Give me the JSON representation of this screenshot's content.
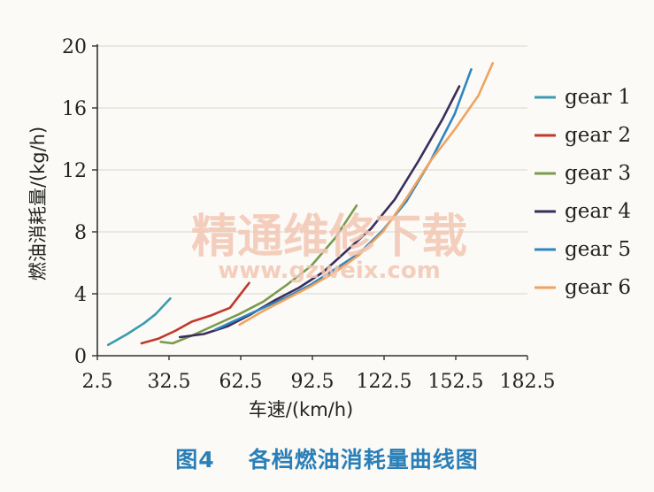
{
  "chart_data": {
    "type": "line",
    "title": "",
    "xlabel": "车速/(km/h)",
    "ylabel": "燃油消耗量/(kg/h)",
    "xlim": [
      2.5,
      182.5
    ],
    "ylim": [
      0,
      20
    ],
    "xticks": [
      "2.5",
      "32.5",
      "62.5",
      "92.5",
      "122.5",
      "152.5",
      "182.5"
    ],
    "yticks": [
      "0",
      "4",
      "8",
      "12",
      "16",
      "20"
    ],
    "legend_position": "right",
    "grid": true,
    "series": [
      {
        "name": "gear 1",
        "color": "#3b9bb0",
        "x": [
          7,
          15,
          22,
          27,
          33
        ],
        "y": [
          0.7,
          1.4,
          2.1,
          2.7,
          3.7
        ]
      },
      {
        "name": "gear 2",
        "color": "#c0392b",
        "x": [
          21,
          28,
          35,
          42,
          50,
          58,
          66
        ],
        "y": [
          0.8,
          1.1,
          1.6,
          2.2,
          2.6,
          3.1,
          4.7
        ]
      },
      {
        "name": "gear 3",
        "color": "#7c9a4e",
        "x": [
          29,
          34,
          42,
          52,
          62,
          72,
          82,
          92,
          102,
          111
        ],
        "y": [
          0.9,
          0.8,
          1.3,
          2.0,
          2.7,
          3.5,
          4.6,
          5.8,
          7.6,
          9.7
        ]
      },
      {
        "name": "gear 4",
        "color": "#3a2d5c",
        "x": [
          37,
          47,
          57,
          67,
          77,
          87,
          97,
          107,
          117,
          127,
          137,
          147,
          154
        ],
        "y": [
          1.2,
          1.4,
          1.9,
          2.7,
          3.6,
          4.4,
          5.4,
          6.8,
          8.2,
          10.1,
          12.6,
          15.3,
          17.4
        ]
      },
      {
        "name": "gear 5",
        "color": "#2e86c1",
        "x": [
          52,
          62,
          72,
          82,
          92,
          102,
          112,
          122,
          132,
          142,
          152,
          159
        ],
        "y": [
          1.7,
          2.4,
          3.1,
          3.8,
          4.6,
          5.6,
          6.6,
          8.1,
          10.0,
          12.6,
          15.6,
          18.5
        ]
      },
      {
        "name": "gear 6",
        "color": "#f0a35e",
        "x": [
          62,
          72,
          82,
          92,
          102,
          112,
          122,
          132,
          142,
          152,
          162,
          168
        ],
        "y": [
          2.0,
          2.9,
          3.7,
          4.5,
          5.4,
          6.5,
          8.0,
          10.2,
          12.6,
          14.6,
          16.8,
          18.9
        ]
      }
    ]
  },
  "watermark": {
    "text": "精通维修下载",
    "url": "www.gzweix.com"
  },
  "caption": {
    "figure_label": "图4",
    "title": "各档燃油消耗量曲线图"
  }
}
